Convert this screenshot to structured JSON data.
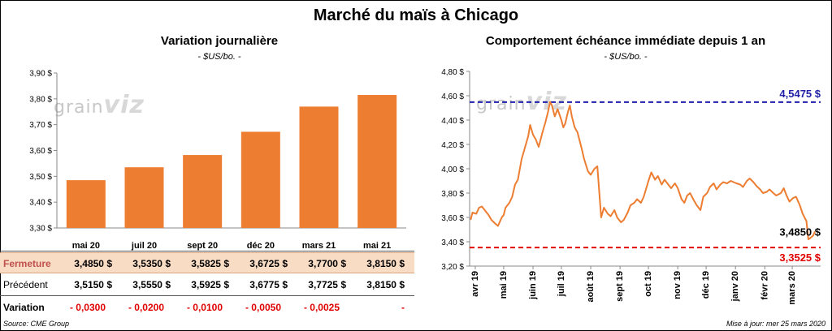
{
  "title": "Marché du maïs à Chicago",
  "left": {
    "title": "Variation journalière",
    "units": "- $US/bo. -",
    "watermark": {
      "text": "grain",
      "accent": "viz"
    }
  },
  "right": {
    "title": "Comportement échéance immédiate depuis 1 an",
    "units": "- $US/bo. -",
    "watermark": {
      "text": "grain",
      "accent": "viz"
    }
  },
  "table": {
    "rows": [
      {
        "label": "Fermeture",
        "values": [
          "3,4850 $",
          "3,5350 $",
          "3,5825 $",
          "3,6725 $",
          "3,7700 $",
          "3,8150 $"
        ]
      },
      {
        "label": "Précédent",
        "values": [
          "3,5150 $",
          "3,5550 $",
          "3,5925 $",
          "3,6775 $",
          "3,7725 $",
          "3,8150 $"
        ]
      },
      {
        "label": "Variation",
        "values": [
          "- 0,0300",
          "- 0,0200",
          "- 0,0100",
          "- 0,0050",
          "- 0,0025",
          "-"
        ]
      }
    ]
  },
  "footer": {
    "source": "Source: CME Group",
    "updated": "Mise à jour: mer 25 mars 2020"
  },
  "colors": {
    "bar": "#ed7d31",
    "line": "#ed7d31",
    "high": "#1f1fa8",
    "low": "#e00000",
    "close": "#ed7d31"
  },
  "chart_data": [
    {
      "type": "bar",
      "title": "Variation journalière",
      "ylabel": "$US/bo.",
      "categories": [
        "mai 20",
        "juil 20",
        "sept 20",
        "déc 20",
        "mars 21",
        "mai 21"
      ],
      "values": [
        3.485,
        3.535,
        3.5825,
        3.6725,
        3.77,
        3.815
      ],
      "ylim": [
        3.3,
        3.9
      ],
      "yticks": [
        3.3,
        3.4,
        3.5,
        3.6,
        3.7,
        3.8,
        3.9
      ],
      "ytick_labels": [
        "3,30 $",
        "3,40 $",
        "3,50 $",
        "3,60 $",
        "3,70 $",
        "3,80 $",
        "3,90 $"
      ],
      "grid": false,
      "legend": "none"
    },
    {
      "type": "line",
      "title": "Comportement échéance immédiate depuis 1 an",
      "ylabel": "$US/bo.",
      "ylim": [
        3.2,
        4.8
      ],
      "yticks": [
        3.2,
        3.4,
        3.6,
        3.8,
        4.0,
        4.2,
        4.4,
        4.6,
        4.8
      ],
      "ytick_labels": [
        "3,20 $",
        "3,40 $",
        "3,60 $",
        "3,80 $",
        "4,00 $",
        "4,20 $",
        "4,40 $",
        "4,60 $",
        "4,80 $"
      ],
      "x_tick_labels": [
        "avr 19",
        "mai 19",
        "juin 19",
        "juil 19",
        "août 19",
        "sept 19",
        "oct 19",
        "nov 19",
        "déc 19",
        "janv 20",
        "févr 20",
        "mars 20"
      ],
      "x_tick_dates": [
        "2019-04-01",
        "2019-05-01",
        "2019-06-01",
        "2019-07-01",
        "2019-08-01",
        "2019-09-01",
        "2019-10-01",
        "2019-11-01",
        "2019-12-01",
        "2020-01-01",
        "2020-02-01",
        "2020-03-01"
      ],
      "x_range": [
        "2019-03-26",
        "2020-03-31"
      ],
      "series": [
        {
          "points": [
            [
              "2019-03-27",
              3.58
            ],
            [
              "2019-03-29",
              3.64
            ],
            [
              "2019-04-02",
              3.63
            ],
            [
              "2019-04-05",
              3.68
            ],
            [
              "2019-04-08",
              3.69
            ],
            [
              "2019-04-11",
              3.66
            ],
            [
              "2019-04-15",
              3.62
            ],
            [
              "2019-04-18",
              3.58
            ],
            [
              "2019-04-22",
              3.55
            ],
            [
              "2019-04-25",
              3.53
            ],
            [
              "2019-04-29",
              3.6
            ],
            [
              "2019-05-01",
              3.62
            ],
            [
              "2019-05-03",
              3.68
            ],
            [
              "2019-05-07",
              3.72
            ],
            [
              "2019-05-10",
              3.77
            ],
            [
              "2019-05-13",
              3.87
            ],
            [
              "2019-05-16",
              3.91
            ],
            [
              "2019-05-20",
              4.08
            ],
            [
              "2019-05-23",
              4.16
            ],
            [
              "2019-05-27",
              4.27
            ],
            [
              "2019-05-29",
              4.36
            ],
            [
              "2019-06-01",
              4.28
            ],
            [
              "2019-06-04",
              4.24
            ],
            [
              "2019-06-07",
              4.18
            ],
            [
              "2019-06-11",
              4.3
            ],
            [
              "2019-06-14",
              4.38
            ],
            [
              "2019-06-17",
              4.47
            ],
            [
              "2019-06-19",
              4.55
            ],
            [
              "2019-06-21",
              4.52
            ],
            [
              "2019-06-24",
              4.43
            ],
            [
              "2019-06-27",
              4.49
            ],
            [
              "2019-07-01",
              4.4
            ],
            [
              "2019-07-03",
              4.34
            ],
            [
              "2019-07-05",
              4.37
            ],
            [
              "2019-07-08",
              4.47
            ],
            [
              "2019-07-10",
              4.52
            ],
            [
              "2019-07-12",
              4.43
            ],
            [
              "2019-07-15",
              4.34
            ],
            [
              "2019-07-18",
              4.3
            ],
            [
              "2019-07-22",
              4.18
            ],
            [
              "2019-07-25",
              4.08
            ],
            [
              "2019-07-29",
              3.98
            ],
            [
              "2019-08-01",
              3.95
            ],
            [
              "2019-08-05",
              4.0
            ],
            [
              "2019-08-08",
              4.02
            ],
            [
              "2019-08-12",
              3.6
            ],
            [
              "2019-08-15",
              3.68
            ],
            [
              "2019-08-19",
              3.63
            ],
            [
              "2019-08-22",
              3.61
            ],
            [
              "2019-08-26",
              3.66
            ],
            [
              "2019-08-29",
              3.6
            ],
            [
              "2019-09-02",
              3.56
            ],
            [
              "2019-09-05",
              3.58
            ],
            [
              "2019-09-09",
              3.64
            ],
            [
              "2019-09-12",
              3.7
            ],
            [
              "2019-09-16",
              3.72
            ],
            [
              "2019-09-19",
              3.75
            ],
            [
              "2019-09-23",
              3.72
            ],
            [
              "2019-09-26",
              3.77
            ],
            [
              "2019-10-01",
              3.9
            ],
            [
              "2019-10-04",
              3.97
            ],
            [
              "2019-10-08",
              3.91
            ],
            [
              "2019-10-11",
              3.94
            ],
            [
              "2019-10-15",
              3.87
            ],
            [
              "2019-10-18",
              3.91
            ],
            [
              "2019-10-22",
              3.87
            ],
            [
              "2019-10-25",
              3.84
            ],
            [
              "2019-10-29",
              3.88
            ],
            [
              "2019-11-01",
              3.84
            ],
            [
              "2019-11-05",
              3.75
            ],
            [
              "2019-11-08",
              3.72
            ],
            [
              "2019-11-11",
              3.78
            ],
            [
              "2019-11-14",
              3.8
            ],
            [
              "2019-11-18",
              3.74
            ],
            [
              "2019-11-21",
              3.7
            ],
            [
              "2019-11-25",
              3.66
            ],
            [
              "2019-11-28",
              3.77
            ],
            [
              "2019-12-02",
              3.8
            ],
            [
              "2019-12-05",
              3.85
            ],
            [
              "2019-12-09",
              3.88
            ],
            [
              "2019-12-12",
              3.83
            ],
            [
              "2019-12-16",
              3.87
            ],
            [
              "2019-12-19",
              3.89
            ],
            [
              "2019-12-23",
              3.88
            ],
            [
              "2019-12-27",
              3.9
            ],
            [
              "2020-01-02",
              3.88
            ],
            [
              "2020-01-06",
              3.87
            ],
            [
              "2020-01-09",
              3.85
            ],
            [
              "2020-01-13",
              3.9
            ],
            [
              "2020-01-16",
              3.92
            ],
            [
              "2020-01-20",
              3.89
            ],
            [
              "2020-01-23",
              3.86
            ],
            [
              "2020-01-27",
              3.83
            ],
            [
              "2020-01-30",
              3.8
            ],
            [
              "2020-02-03",
              3.81
            ],
            [
              "2020-02-06",
              3.83
            ],
            [
              "2020-02-10",
              3.8
            ],
            [
              "2020-02-13",
              3.78
            ],
            [
              "2020-02-18",
              3.8
            ],
            [
              "2020-02-21",
              3.84
            ],
            [
              "2020-02-24",
              3.78
            ],
            [
              "2020-02-27",
              3.73
            ],
            [
              "2020-03-02",
              3.76
            ],
            [
              "2020-03-05",
              3.77
            ],
            [
              "2020-03-09",
              3.7
            ],
            [
              "2020-03-12",
              3.63
            ],
            [
              "2020-03-16",
              3.57
            ],
            [
              "2020-03-18",
              3.42
            ],
            [
              "2020-03-20",
              3.43
            ],
            [
              "2020-03-23",
              3.45
            ],
            [
              "2020-03-25",
              3.485
            ]
          ]
        }
      ],
      "reference_lines": [
        {
          "label": "4,5475 $",
          "value": 4.5475,
          "color": "#1f1fa8",
          "style": "dashed"
        },
        {
          "label": "3,3525 $",
          "value": 3.3525,
          "color": "#e00000",
          "style": "dashed"
        }
      ],
      "last_value_label": "3,4850 $",
      "last_value": 3.485,
      "grid": false,
      "legend": "none"
    }
  ]
}
